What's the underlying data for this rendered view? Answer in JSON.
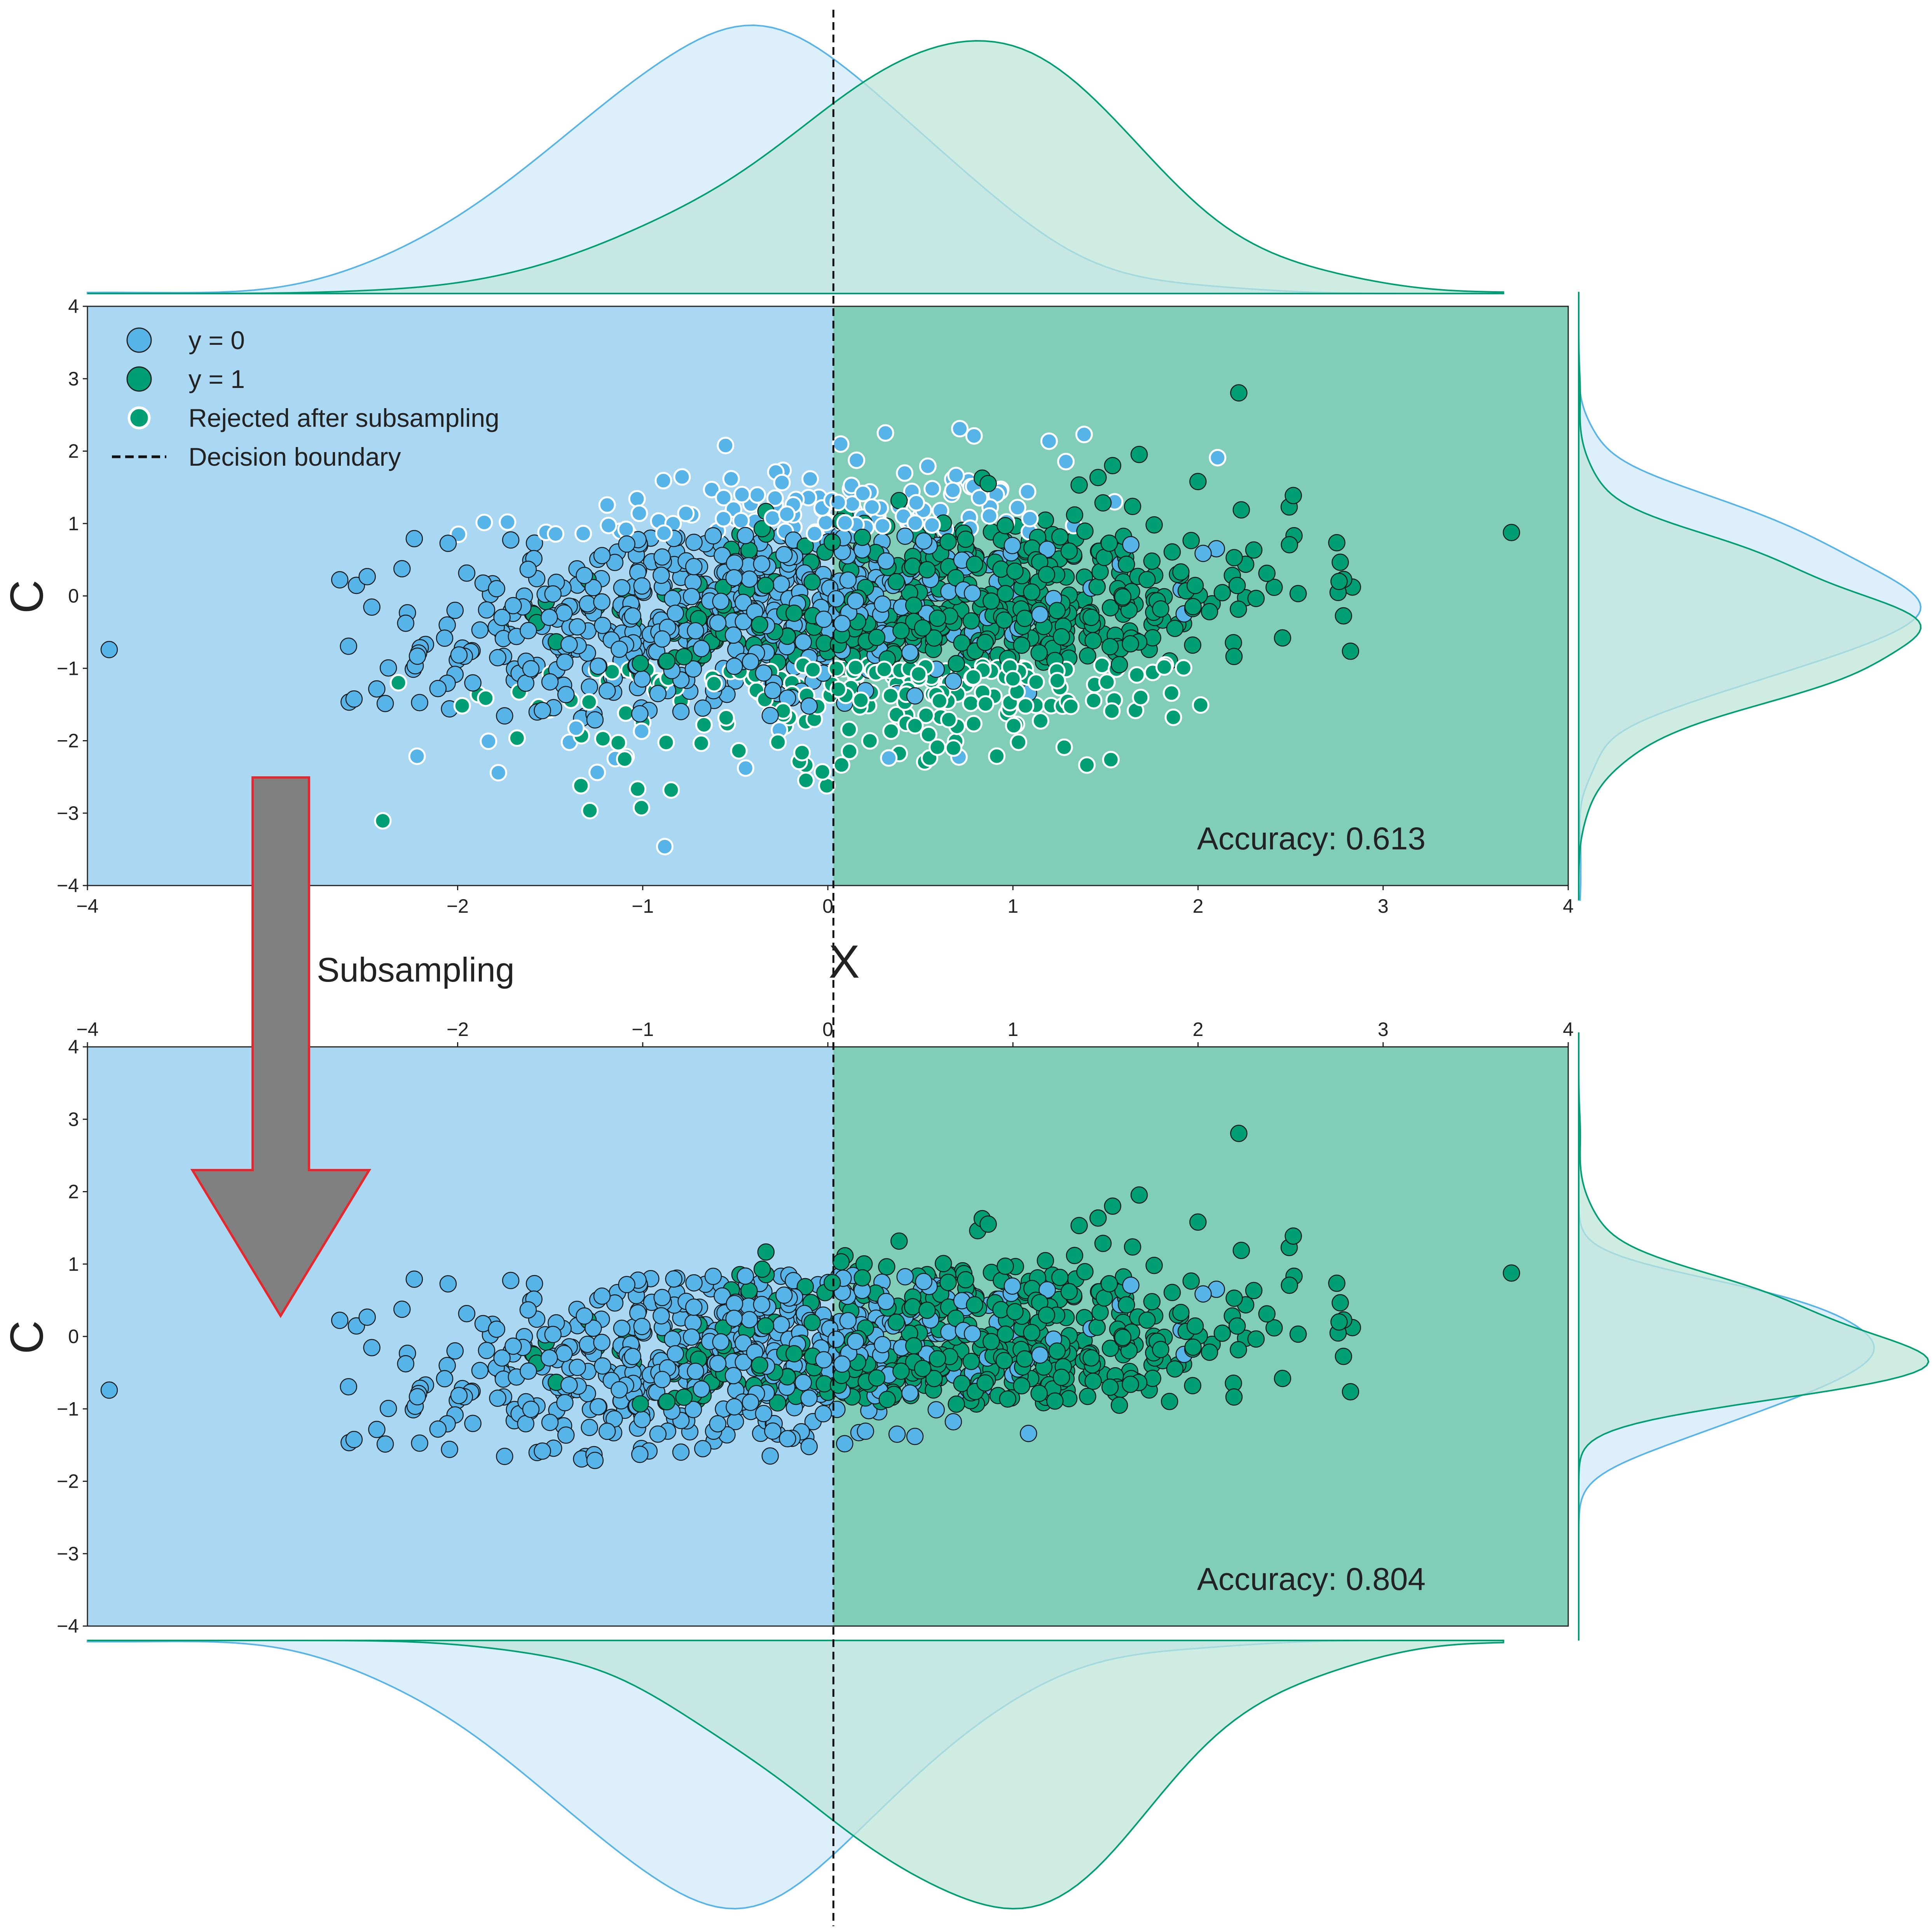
{
  "colors": {
    "class0": "#56B4E9",
    "class1": "#009E73",
    "class0_region": "#AAD8F2",
    "class1_region": "#80CEB8",
    "class0_fill": "#D2EAF8",
    "class1_fill": "#BFE6DA",
    "overlap_fill": "#A5DADC",
    "arrow_fill": "#808080",
    "arrow_edge": "#E8262B"
  },
  "labels": {
    "y_label_top": "C",
    "y_label_bottom": "C",
    "x_label": "X",
    "subsampling": "Subsampling"
  },
  "legend": {
    "class0": "y = 0",
    "class1": "y = 1",
    "rejected": "Rejected after subsampling",
    "boundary": "Decision boundary"
  },
  "ticks": {
    "x": [
      "−4",
      "−2",
      "−1",
      "0",
      "1",
      "2",
      "3",
      "4"
    ],
    "y": [
      "4",
      "3",
      "2",
      "1",
      "0",
      "−1",
      "−2",
      "−3",
      "−4"
    ]
  },
  "chart_data": [
    {
      "type": "scatter",
      "panel": "before subsampling",
      "xlabel": "X",
      "ylabel": "C",
      "xlim": [
        -4,
        4
      ],
      "ylim": [
        -4,
        4
      ],
      "xticks": [
        -4,
        -2,
        -1,
        0,
        1,
        2,
        3,
        4
      ],
      "yticks": [
        -4,
        -3,
        -2,
        -1,
        0,
        1,
        2,
        3,
        4
      ],
      "decision_boundary_x": 0.03,
      "annotation": "Accuracy: 0.613",
      "legend_position": "upper-left",
      "grid": false,
      "series": [
        {
          "name": "y = 0",
          "point_count_approx": 700,
          "center": [
            -0.5,
            0.0
          ]
        },
        {
          "name": "y = 1",
          "point_count_approx": 700,
          "center": [
            0.7,
            -0.3
          ]
        },
        {
          "name": "Rejected after subsampling",
          "point_count_approx": 390
        }
      ]
    },
    {
      "type": "scatter",
      "panel": "after subsampling",
      "xlabel": "X",
      "ylabel": "C",
      "xlim": [
        -4,
        4
      ],
      "ylim": [
        -4,
        4
      ],
      "xticks": [
        -4,
        -2,
        -1,
        0,
        1,
        2,
        3,
        4
      ],
      "yticks": [
        -4,
        -3,
        -2,
        -1,
        0,
        1,
        2,
        3,
        4
      ],
      "decision_boundary_x": 0.03,
      "annotation": "Accuracy: 0.804",
      "grid": false,
      "series": [
        {
          "name": "y = 0",
          "point_count_approx": 510
        },
        {
          "name": "y = 1",
          "point_count_approx": 510
        }
      ]
    }
  ]
}
